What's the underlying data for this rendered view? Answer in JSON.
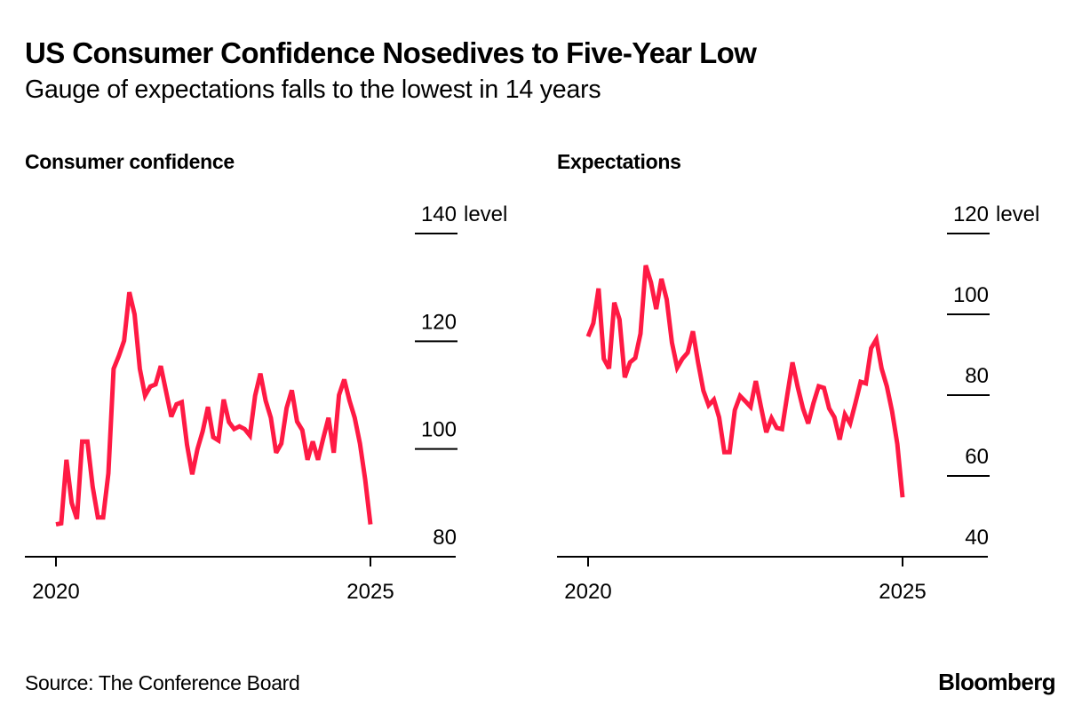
{
  "header": {
    "title": "US Consumer Confidence Nosedives to Five-Year Low",
    "subtitle": "Gauge of expectations falls to the lowest in 14 years"
  },
  "footer": {
    "source": "Source: The Conference Board",
    "brand": "Bloomberg"
  },
  "colors": {
    "line": "#ff1a44",
    "axis": "#000000"
  },
  "chart_data": [
    {
      "type": "line",
      "title": "Consumer confidence",
      "xlabel": "",
      "ylabel": "level",
      "ylim": [
        80,
        140
      ],
      "yticks": [
        140,
        120,
        100,
        80
      ],
      "ytick_labels": [
        "140 level",
        "120",
        "100",
        "80"
      ],
      "xticks": [
        "2020",
        "2025"
      ],
      "x_start": "2020-01",
      "frequency": "monthly",
      "grid": false,
      "legend": "none",
      "series": [
        {
          "name": "Consumer confidence",
          "values": [
            86.0,
            86.2,
            98.0,
            90.0,
            87.0,
            101.4,
            101.4,
            93.0,
            87.3,
            87.3,
            95.5,
            114.9,
            117.3,
            120.1,
            129.1,
            125.0,
            114.9,
            109.9,
            111.6,
            112.0,
            115.4,
            110.7,
            106.0,
            108.3,
            108.7,
            100.8,
            95.3,
            100.0,
            103.3,
            107.8,
            102.2,
            101.6,
            109.2,
            105.0,
            103.7,
            104.2,
            103.7,
            102.5,
            109.9,
            114.0,
            109.0,
            105.8,
            99.3,
            101.0,
            107.6,
            110.9,
            105.1,
            103.5,
            98.0,
            101.4,
            98.0,
            102.0,
            105.8,
            99.3,
            110.0,
            112.9,
            109.0,
            105.8,
            101.0,
            94.3,
            86.0
          ]
        }
      ]
    },
    {
      "type": "line",
      "title": "Expectations",
      "xlabel": "",
      "ylabel": "level",
      "ylim": [
        40,
        120
      ],
      "yticks": [
        120,
        100,
        80,
        60,
        40
      ],
      "ytick_labels": [
        "120 level",
        "100",
        "80",
        "60",
        "40"
      ],
      "xticks": [
        "2020",
        "2025"
      ],
      "x_start": "2020-01",
      "frequency": "monthly",
      "grid": false,
      "legend": "none",
      "series": [
        {
          "name": "Expectations",
          "values": [
            94.5,
            97.8,
            106.4,
            89.0,
            86.6,
            102.9,
            98.7,
            84.4,
            88.1,
            89.2,
            95.2,
            112.1,
            107.9,
            101.3,
            108.8,
            103.7,
            93.0,
            86.8,
            89.0,
            90.5,
            95.8,
            88.0,
            81.1,
            77.5,
            78.9,
            74.5,
            65.9,
            65.9,
            76.3,
            79.8,
            78.5,
            77.1,
            83.5,
            77.0,
            70.8,
            74.3,
            71.9,
            71.6,
            80.0,
            88.1,
            82.0,
            76.7,
            73.0,
            78.0,
            82.2,
            81.8,
            76.7,
            74.5,
            69.0,
            75.2,
            73.0,
            78.0,
            83.3,
            82.9,
            91.6,
            93.8,
            86.6,
            82.2,
            76.0,
            67.9,
            54.7
          ]
        }
      ]
    }
  ]
}
